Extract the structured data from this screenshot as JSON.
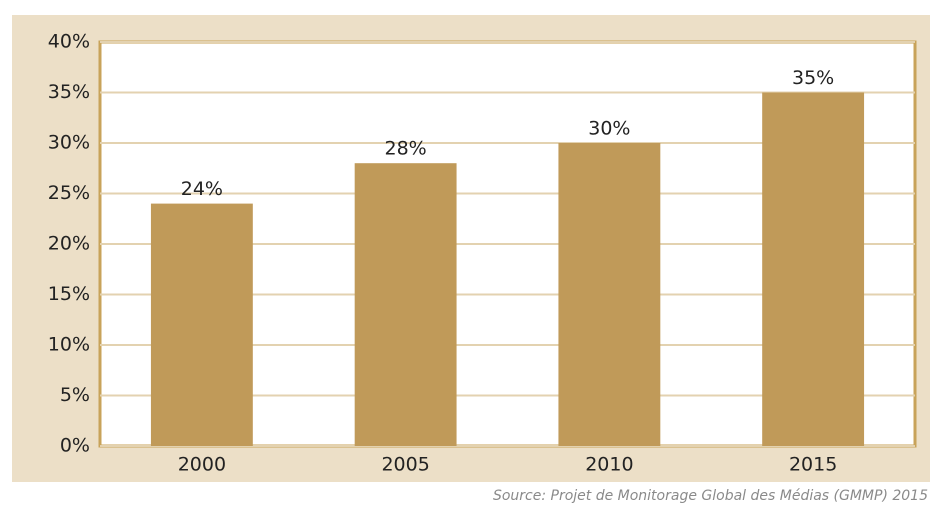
{
  "chart_data": {
    "type": "bar",
    "categories": [
      "2000",
      "2005",
      "2010",
      "2015"
    ],
    "values": [
      24,
      28,
      30,
      35
    ],
    "value_labels": [
      "24%",
      "28%",
      "30%",
      "35%"
    ],
    "color": "#c09a59",
    "ylim": [
      0,
      40
    ],
    "yticks": [
      {
        "value": 0,
        "label": "0%"
      },
      {
        "value": 5,
        "label": "5%"
      },
      {
        "value": 10,
        "label": "10%"
      },
      {
        "value": 15,
        "label": "15%"
      },
      {
        "value": 20,
        "label": "20%"
      },
      {
        "value": 25,
        "label": "25%"
      },
      {
        "value": 30,
        "label": "30%"
      },
      {
        "value": 35,
        "label": "35%"
      },
      {
        "value": 40,
        "label": "40%"
      }
    ],
    "grid": true,
    "source": "Source: Projet de Monitorage Global des Médias  (GMMP) 2015"
  }
}
